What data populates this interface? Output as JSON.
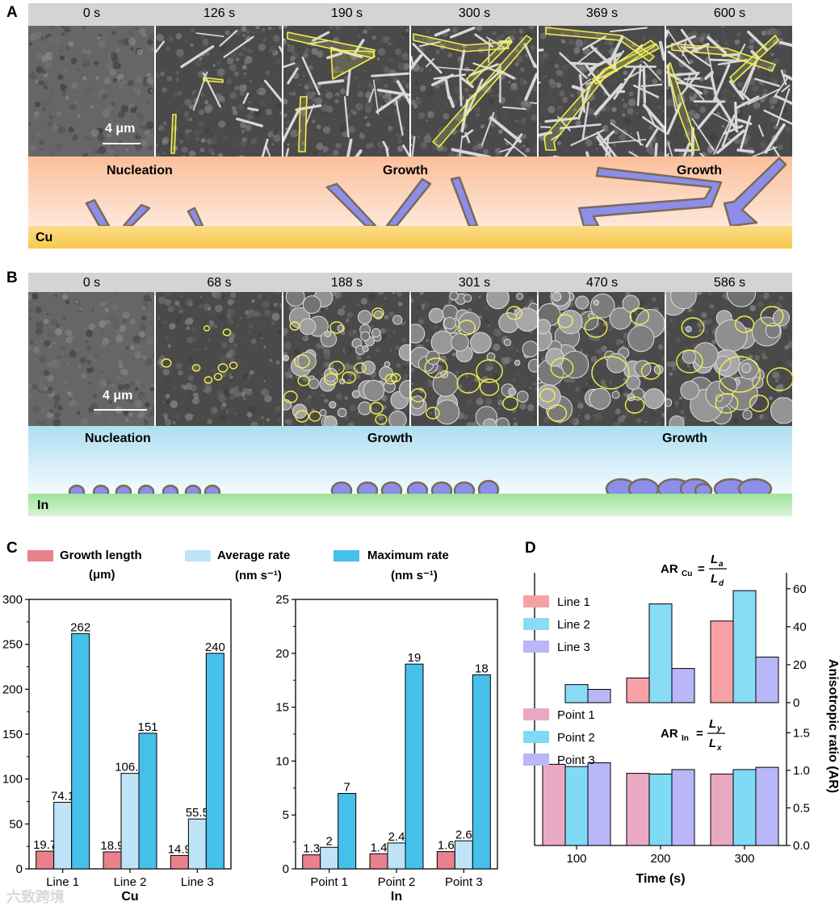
{
  "panel_a": {
    "letter": "A",
    "times": [
      "0 s",
      "126 s",
      "190 s",
      "300 s",
      "369 s",
      "600 s"
    ],
    "scale_bar": "4 μm",
    "stages": [
      "Nucleation",
      "Growth",
      "Growth"
    ],
    "substrate": "Cu"
  },
  "panel_b": {
    "letter": "B",
    "times": [
      "0 s",
      "68 s",
      "188 s",
      "301 s",
      "470 s",
      "586 s"
    ],
    "scale_bar": "4 μm",
    "stages": [
      "Nucleation",
      "Growth",
      "Growth"
    ],
    "substrate": "In"
  },
  "panel_c": {
    "letter": "C",
    "legend": [
      {
        "name": "Growth length",
        "unit": "(μm)",
        "color": "#e8818c"
      },
      {
        "name": "Average rate",
        "unit": "(nm s⁻¹)",
        "color": "#bfe4f7"
      },
      {
        "name": "Maximum rate",
        "unit": "(nm s⁻¹)",
        "color": "#45c0ea"
      }
    ]
  },
  "panel_d": {
    "letter": "D",
    "legend_top": [
      {
        "name": "Line 1",
        "color": "#f7a1a6"
      },
      {
        "name": "Line 2",
        "color": "#88dcf6"
      },
      {
        "name": "Line 3",
        "color": "#b9b7f7"
      }
    ],
    "legend_bottom": [
      {
        "name": "Point 1",
        "color": "#eaa9c3"
      },
      {
        "name": "Point 2",
        "color": "#7fdaf5"
      },
      {
        "name": "Point 3",
        "color": "#b9b7f7"
      }
    ],
    "ar_cu_label": "AR",
    "ar_cu_sub": "Cu",
    "ar_cu_num": "L",
    "ar_cu_num_sub": "a",
    "ar_cu_den": "L",
    "ar_cu_den_sub": "d",
    "ar_in_label": "AR",
    "ar_in_sub": "In",
    "ar_in_num": "L",
    "ar_in_num_sub": "y",
    "ar_in_den": "L",
    "ar_in_den_sub": "x",
    "eq": "="
  },
  "watermark": "六致跨境",
  "chart_data": [
    {
      "type": "bar",
      "categories": [
        "Line 1",
        "Line 2",
        "Line 3"
      ],
      "series": [
        {
          "name": "Growth length",
          "values": [
            19.7,
            18.9,
            14.9
          ]
        },
        {
          "name": "Average rate",
          "values": [
            74.1,
            106.3,
            55.5
          ]
        },
        {
          "name": "Maximum rate",
          "values": [
            262,
            151,
            240
          ]
        }
      ],
      "value_labels": [
        [
          "19.7",
          "18.9",
          "14.9"
        ],
        [
          "74.1",
          "106.3",
          "55.5"
        ],
        [
          "262",
          "151",
          "240"
        ]
      ],
      "xlabel": "Cu",
      "ylabel": "",
      "ylim": [
        0,
        300
      ],
      "yticks": [
        "0",
        "50",
        "100",
        "150",
        "200",
        "250",
        "300"
      ]
    },
    {
      "type": "bar",
      "categories": [
        "Point 1",
        "Point 2",
        "Point 3"
      ],
      "series": [
        {
          "name": "Growth length",
          "values": [
            1.3,
            1.4,
            1.6
          ]
        },
        {
          "name": "Average rate",
          "values": [
            2,
            2.4,
            2.6
          ]
        },
        {
          "name": "Maximum rate",
          "values": [
            7,
            19,
            18
          ]
        }
      ],
      "value_labels": [
        [
          "1.3",
          "1.4",
          "1.6"
        ],
        [
          "2",
          "2.4",
          "2.6"
        ],
        [
          "7",
          "19",
          "18"
        ]
      ],
      "xlabel": "In",
      "ylabel": "",
      "ylim": [
        0,
        25
      ],
      "yticks": [
        "0",
        "5",
        "10",
        "15",
        "20",
        "25"
      ]
    },
    {
      "type": "bar",
      "categories": [
        "100",
        "200",
        "300"
      ],
      "series": [
        {
          "name": "Line 1",
          "values": [
            0,
            13,
            43
          ]
        },
        {
          "name": "Line 2",
          "values": [
            9.5,
            52,
            59
          ]
        },
        {
          "name": "Line 3",
          "values": [
            7,
            18,
            24
          ]
        }
      ],
      "xlabel": "Time (s)",
      "ylabel": "Anisotropic ratio (AR)",
      "ylim": [
        0,
        65
      ],
      "yticks": [
        "0",
        "20",
        "40",
        "60"
      ]
    },
    {
      "type": "bar",
      "categories": [
        "100",
        "200",
        "300"
      ],
      "series": [
        {
          "name": "Point 1",
          "values": [
            1.08,
            0.96,
            0.95
          ]
        },
        {
          "name": "Point 2",
          "values": [
            1.05,
            0.95,
            1.01
          ]
        },
        {
          "name": "Point 3",
          "values": [
            1.1,
            1.01,
            1.04
          ]
        }
      ],
      "xlabel": "Time (s)",
      "ylabel": "Anisotropic ratio (AR)",
      "ylim": [
        0,
        1.75
      ],
      "yticks": [
        "0.0",
        "0.5",
        "1.0",
        "1.5"
      ]
    }
  ]
}
